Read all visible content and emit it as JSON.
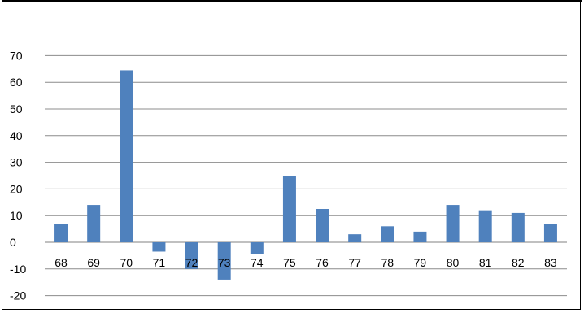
{
  "chart_data": {
    "type": "bar",
    "title": "",
    "xlabel": "",
    "ylabel": "",
    "categories": [
      "68",
      "69",
      "70",
      "71",
      "72",
      "73",
      "74",
      "75",
      "76",
      "77",
      "78",
      "79",
      "80",
      "81",
      "82",
      "83"
    ],
    "values": [
      7,
      14,
      64.5,
      -3.5,
      -10,
      -14,
      -4.5,
      25,
      12.5,
      3,
      6,
      4,
      14,
      12,
      11,
      7
    ],
    "yticks": [
      70,
      60,
      50,
      40,
      30,
      20,
      10,
      0,
      -10,
      -20
    ],
    "ylim": [
      -20,
      70
    ],
    "grid": true,
    "legend": "none",
    "bar_color": "#4f81bd"
  }
}
